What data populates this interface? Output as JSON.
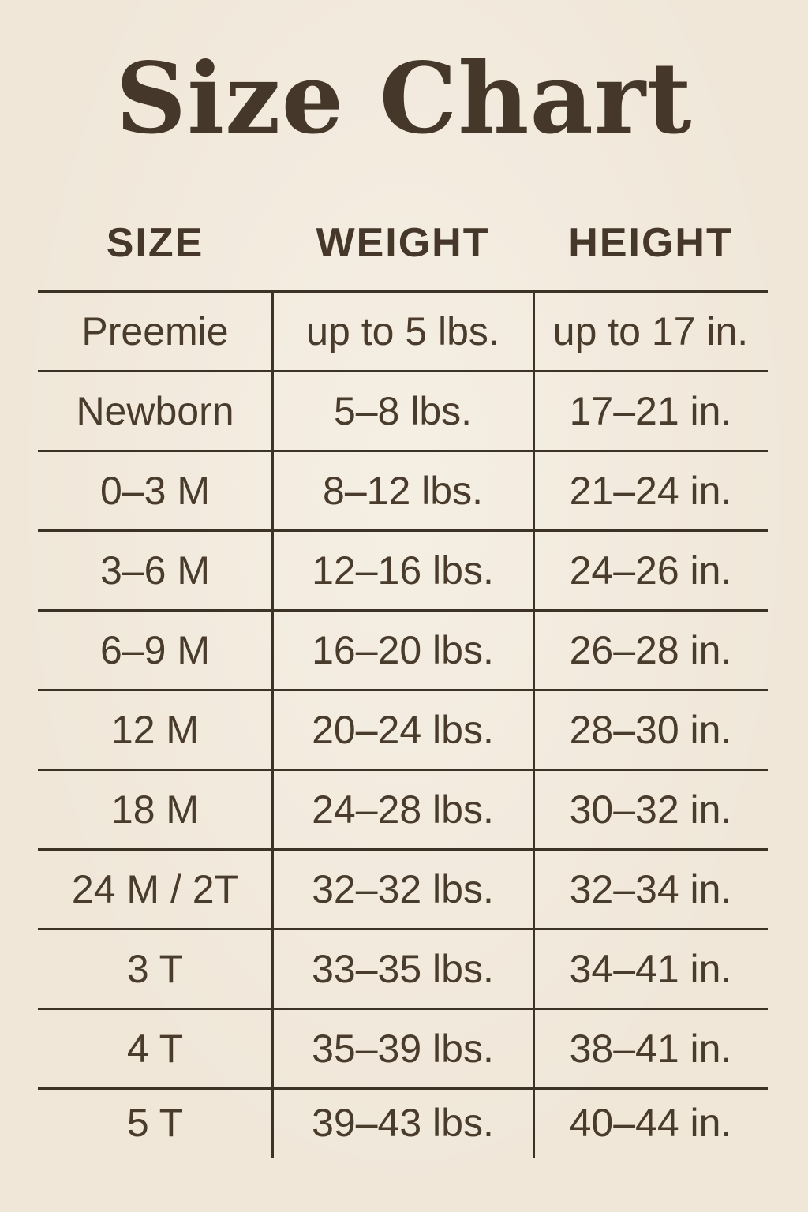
{
  "title": "Size Chart",
  "chart_data": {
    "type": "table",
    "title": "Size Chart",
    "columns": [
      "SIZE",
      "WEIGHT",
      "HEIGHT"
    ],
    "rows": [
      [
        "Preemie",
        "up to 5 lbs.",
        "up to 17 in."
      ],
      [
        "Newborn",
        "5–8 lbs.",
        "17–21 in."
      ],
      [
        "0–3 M",
        "8–12 lbs.",
        "21–24 in."
      ],
      [
        "3–6 M",
        "12–16 lbs.",
        "24–26 in."
      ],
      [
        "6–9 M",
        "16–20 lbs.",
        "26–28 in."
      ],
      [
        "12 M",
        "20–24 lbs.",
        "28–30 in."
      ],
      [
        "18 M",
        "24–28 lbs.",
        "30–32 in."
      ],
      [
        "24 M / 2T",
        "32–32 lbs.",
        "32–34 in."
      ],
      [
        "3 T",
        "33–35 lbs.",
        "34–41 in."
      ],
      [
        "4 T",
        "35–39 lbs.",
        "38–41 in."
      ],
      [
        "5 T",
        "39–43 lbs.",
        "40–44 in."
      ]
    ],
    "layout": {
      "legend": "none",
      "grid": "ruled rows with two interior column dividers, no outer side borders",
      "note": "column dividers extend below the last row; last row has no bottom rule"
    }
  },
  "colors": {
    "background": "#f0e7d9",
    "text": "#4a3c2c",
    "title_text": "#453729",
    "rule_lines": "#3d3226"
  }
}
